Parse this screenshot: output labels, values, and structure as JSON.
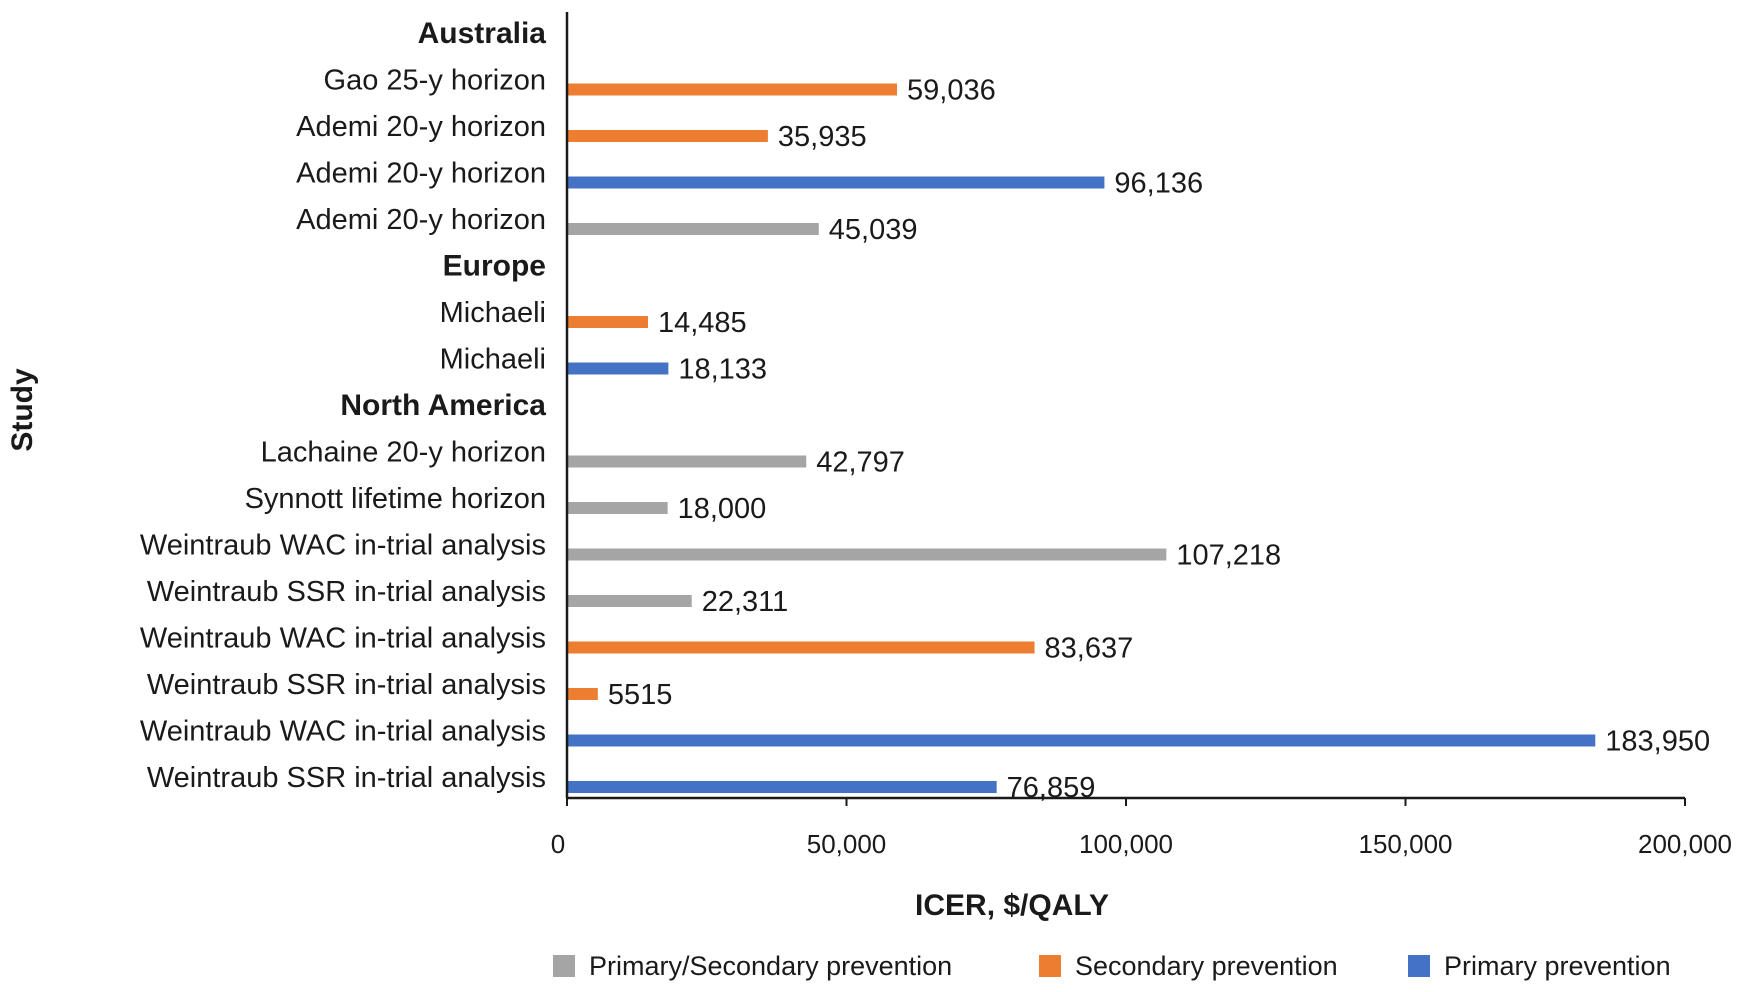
{
  "chart_data": {
    "type": "bar",
    "orientation": "horizontal",
    "xlabel": "ICER, $/QALY",
    "ylabel": "Study",
    "xlim": [
      0,
      200000
    ],
    "xticks": [
      0,
      50000,
      100000,
      150000,
      200000
    ],
    "xtick_labels": [
      "0",
      "50,000",
      "100,000",
      "150,000",
      "200,000"
    ],
    "grid": false,
    "legend_position": "bottom",
    "series": [
      {
        "name": "Primary/Secondary prevention",
        "color": "#a5a5a5"
      },
      {
        "name": "Secondary prevention",
        "color": "#ed7d31"
      },
      {
        "name": "Primary prevention",
        "color": "#4472c4"
      }
    ],
    "rows": [
      {
        "kind": "group",
        "label": "Australia"
      },
      {
        "kind": "bar",
        "label": "Gao 25-y horizon",
        "series": "Secondary prevention",
        "value": 59036,
        "value_label": "59,036"
      },
      {
        "kind": "bar",
        "label": "Ademi 20-y horizon",
        "series": "Secondary prevention",
        "value": 35935,
        "value_label": "35,935"
      },
      {
        "kind": "bar",
        "label": "Ademi 20-y  horizon",
        "series": "Primary prevention",
        "value": 96136,
        "value_label": "96,136"
      },
      {
        "kind": "bar",
        "label": "Ademi 20-y horizon",
        "series": "Primary/Secondary prevention",
        "value": 45039,
        "value_label": "45,039"
      },
      {
        "kind": "group",
        "label": "Europe"
      },
      {
        "kind": "bar",
        "label": "Michaeli",
        "series": "Secondary prevention",
        "value": 14485,
        "value_label": "14,485"
      },
      {
        "kind": "bar",
        "label": "Michaeli",
        "series": "Primary prevention",
        "value": 18133,
        "value_label": "18,133"
      },
      {
        "kind": "group",
        "label": "North America"
      },
      {
        "kind": "bar",
        "label": "Lachaine 20-y horizon",
        "series": "Primary/Secondary prevention",
        "value": 42797,
        "value_label": "42,797"
      },
      {
        "kind": "bar",
        "label": "Synnott lifetime horizon",
        "series": "Primary/Secondary prevention",
        "value": 18000,
        "value_label": "18,000"
      },
      {
        "kind": "bar",
        "label": "Weintraub WAC in-trial analysis",
        "series": "Primary/Secondary prevention",
        "value": 107218,
        "value_label": "107,218"
      },
      {
        "kind": "bar",
        "label": "Weintraub SSR in-trial analysis",
        "series": "Primary/Secondary prevention",
        "value": 22311,
        "value_label": "22,311"
      },
      {
        "kind": "bar",
        "label": "Weintraub WAC in-trial analysis",
        "series": "Secondary prevention",
        "value": 83637,
        "value_label": "83,637"
      },
      {
        "kind": "bar",
        "label": "Weintraub SSR in-trial analysis",
        "series": "Secondary prevention",
        "value": 5515,
        "value_label": "5515"
      },
      {
        "kind": "bar",
        "label": "Weintraub WAC in-trial analysis",
        "series": "Primary prevention",
        "value": 183950,
        "value_label": "183,950"
      },
      {
        "kind": "bar",
        "label": "Weintraub SSR in-trial analysis",
        "series": "Primary prevention",
        "value": 76859,
        "value_label": "76,859"
      }
    ]
  }
}
